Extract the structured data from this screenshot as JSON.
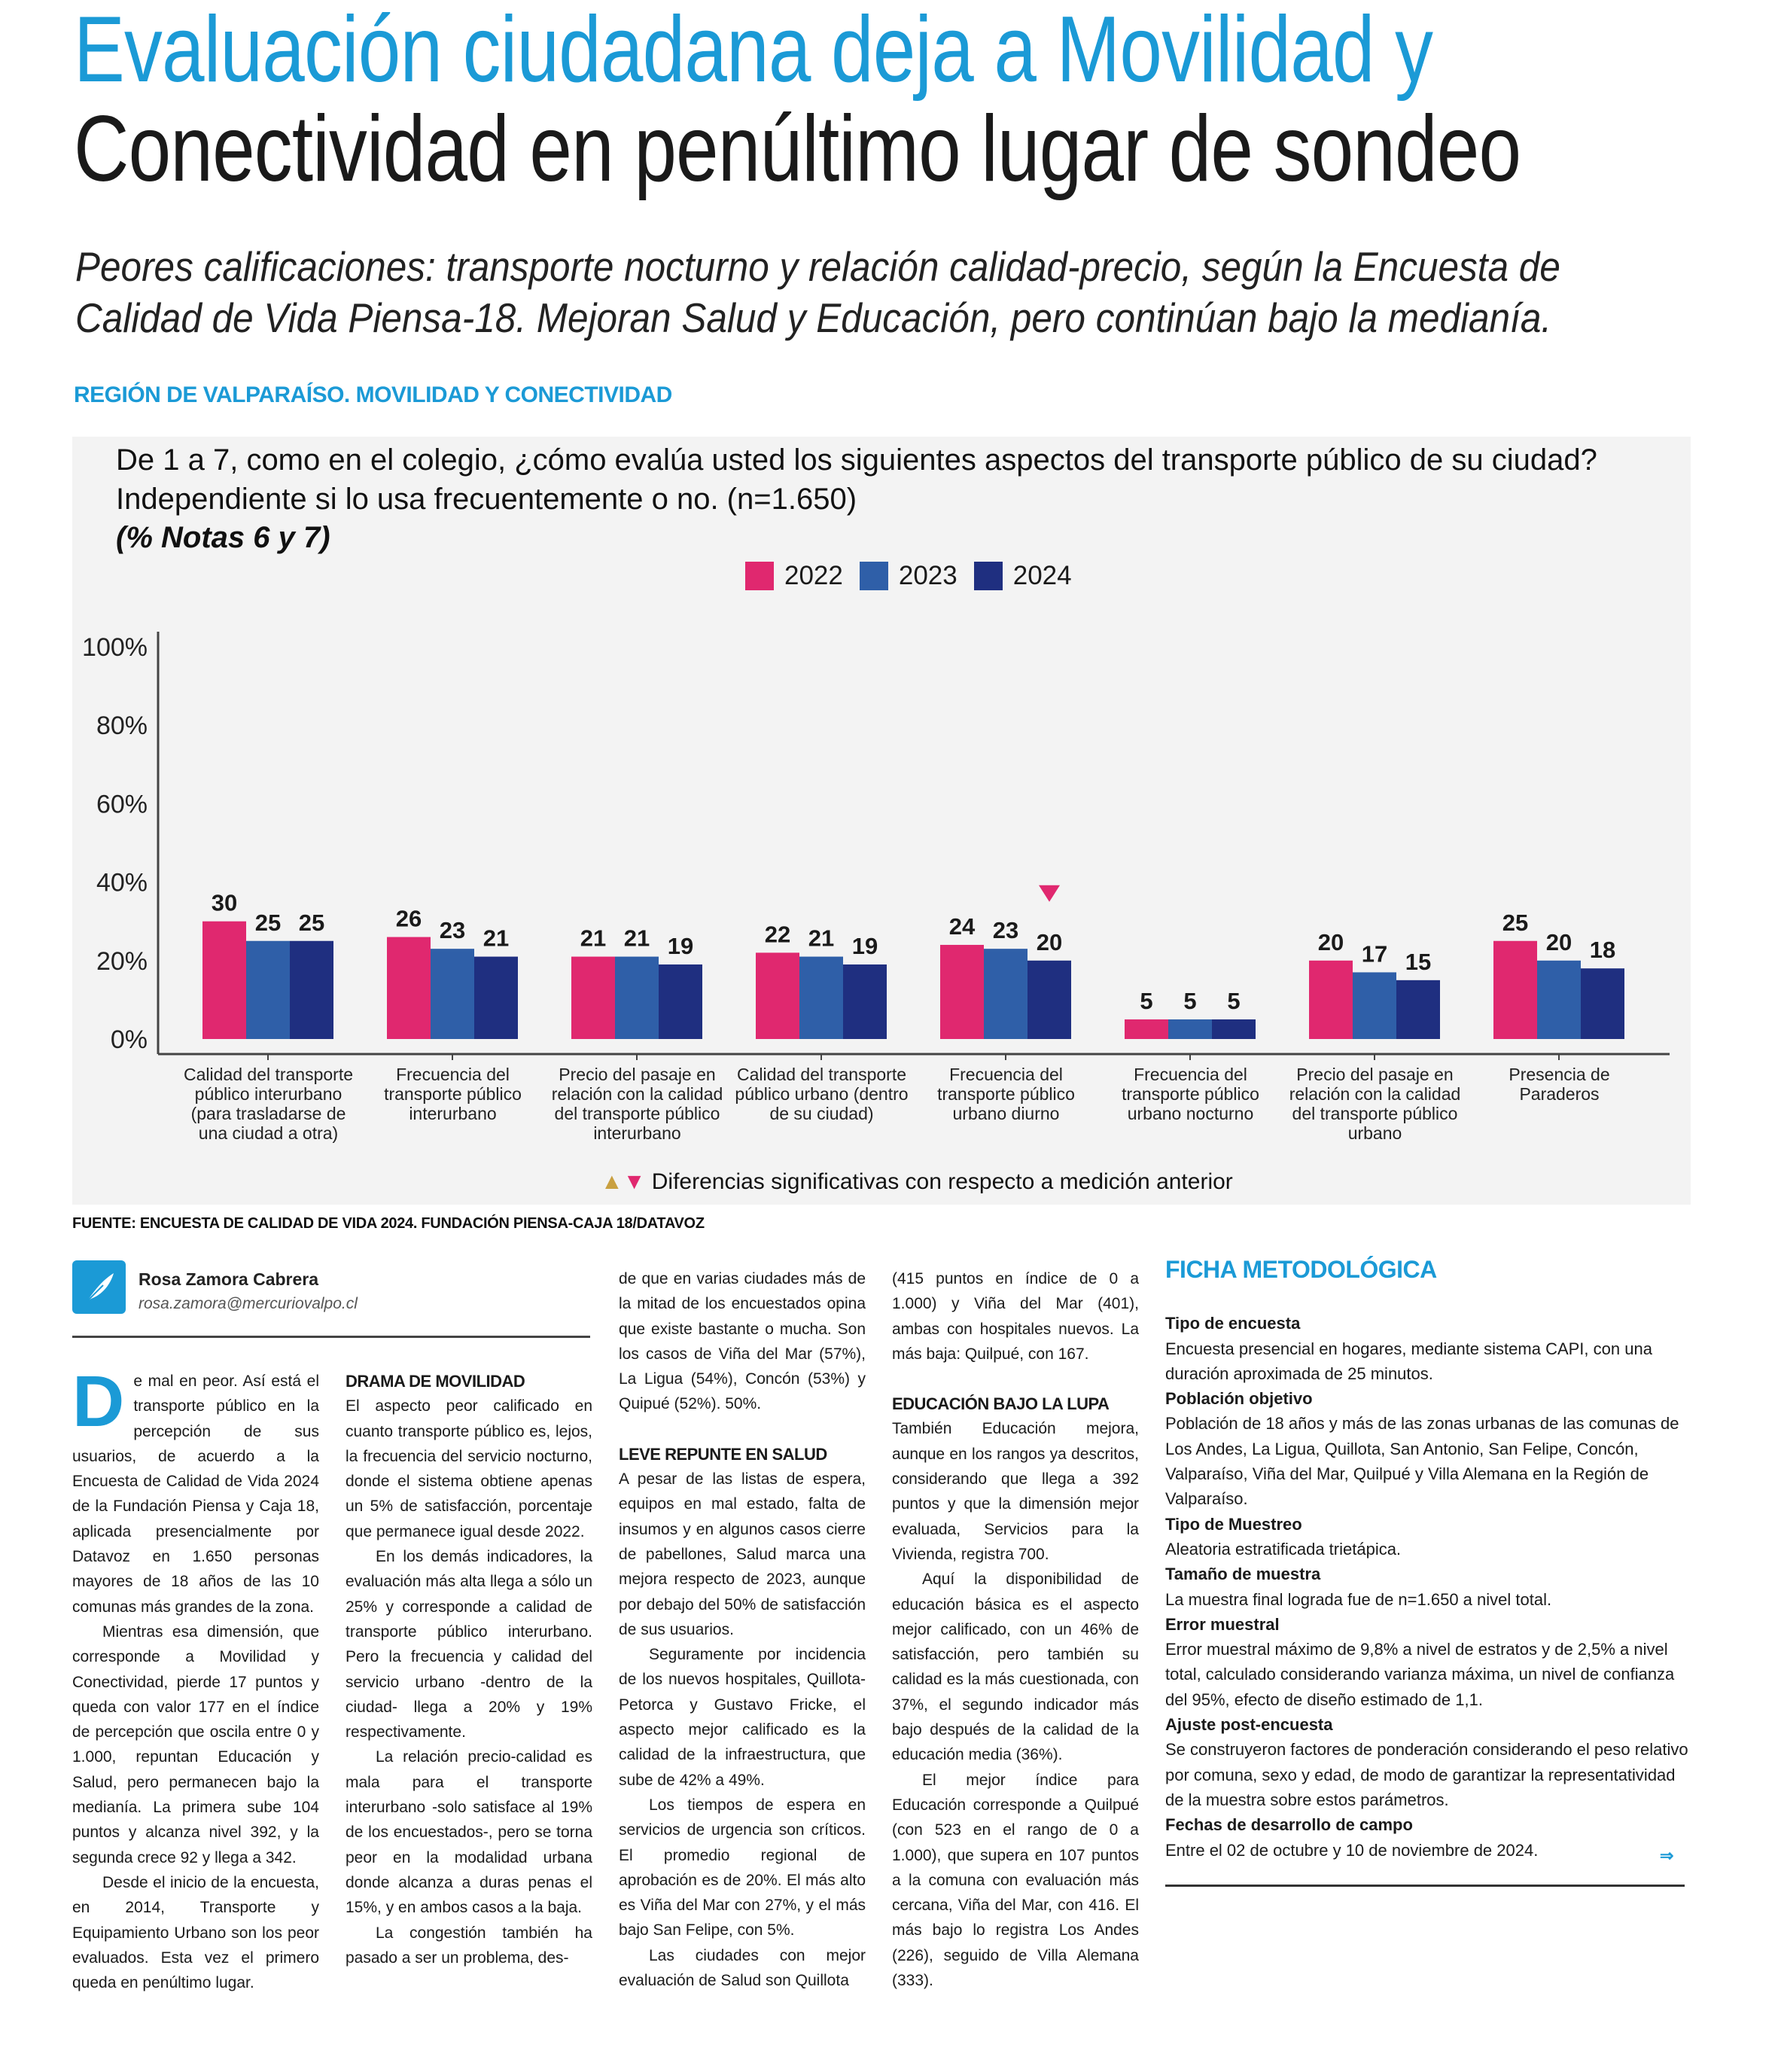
{
  "headline": {
    "line1": "Evaluación ciudadana deja a Movilidad y",
    "line2": "Conectividad en penúltimo lugar de sondeo"
  },
  "subtitle": "Peores calificaciones: transporte nocturno y relación calidad-precio, según la Encuesta de Calidad de Vida Piensa-18. Mejoran Salud y Educación, pero continúan bajo la medianía.",
  "section_label": "REGIÓN DE VALPARAÍSO. MOVILIDAD Y CONECTIVIDAD",
  "colors": {
    "brand": "#1b9ad6",
    "y2022": "#e0286f",
    "y2023": "#2f5fa8",
    "y2024": "#1f2f80",
    "up": "#c9a040",
    "down": "#e0286f"
  },
  "chart_data": {
    "type": "bar",
    "title": "De 1 a 7, como en el colegio, ¿cómo evalúa usted los siguientes aspectos del transporte público de su ciudad? Independiente si lo usa frecuentemente o no. (n=1.650)",
    "subtitle": "(% Notas 6 y 7)",
    "categories": [
      "Calidad del transporte público interurbano (para trasladarse de una ciudad a otra)",
      "Frecuencia del transporte público interurbano",
      "Precio del pasaje en relación con la calidad del transporte público interurbano",
      "Calidad del transporte público urbano (dentro de su ciudad)",
      "Frecuencia del transporte público urbano diurno",
      "Frecuencia del transporte público urbano nocturno",
      "Precio del pasaje en relación con la calidad del transporte público urbano",
      "Presencia de Paraderos"
    ],
    "series": [
      {
        "name": "2022",
        "values": [
          30,
          26,
          21,
          22,
          24,
          5,
          20,
          25
        ]
      },
      {
        "name": "2023",
        "values": [
          25,
          23,
          21,
          21,
          23,
          5,
          17,
          20
        ]
      },
      {
        "name": "2024",
        "values": [
          25,
          21,
          19,
          19,
          20,
          5,
          15,
          18
        ]
      }
    ],
    "yticks": [
      "0%",
      "20%",
      "40%",
      "60%",
      "80%",
      "100%"
    ],
    "ylim": [
      0,
      100
    ],
    "xlabel": "",
    "ylabel": "",
    "legend": "top-center",
    "significance_markers": [
      {
        "category_index": 4,
        "series": "2024",
        "direction": "down"
      }
    ],
    "footnote": "Diferencias significativas con respecto a medición anterior"
  },
  "fuente": "FUENTE: ENCUESTA DE CALIDAD DE VIDA 2024. FUNDACIÓN PIENSA-CAJA 18/DATAVOZ",
  "author": {
    "name": "Rosa Zamora Cabrera",
    "email": "rosa.zamora@mercuriovalpo.cl"
  },
  "article": {
    "dropcap": "D",
    "col1": [
      "e mal en peor. Así está el transporte público en la percepción de sus usuarios, de acuerdo a la Encuesta de Calidad de Vida 2024 de la Fundación Piensa y Caja 18, aplicada presencialmente por Datavoz en 1.650 personas mayores de 18 años de las 10 comunas más grandes de la zona.",
      "Mientras esa dimensión, que corresponde a Movilidad y Conectividad, pierde 17 puntos y queda con valor 177 en el índice de percepción que oscila entre 0 y 1.000, repuntan Educación y Salud, pero permanecen bajo la medianía. La primera sube 104 puntos y alcanza nivel 392, y la segunda crece 92 y llega a 342.",
      "Desde el inicio de la encuesta, en 2014, Transporte y Equipamiento Urbano son los peor evaluados. Esta vez el primero queda en penúltimo lugar."
    ],
    "h_drama": "DRAMA DE MOVILIDAD",
    "col2": [
      "El aspecto peor calificado en cuanto transporte público es, lejos, la frecuencia del servicio nocturno, donde el sistema obtiene apenas un 5% de satisfacción, porcentaje que permanece igual desde 2022.",
      "En los demás indicadores, la evaluación más alta llega a sólo un 25% y corresponde a calidad de transporte público interurbano. Pero la frecuencia y calidad del servicio urbano -dentro de la ciudad- llega a 20% y 19% respectivamente.",
      "La relación precio-calidad es mala para el transporte interurbano -solo satisface al 19% de los encuestados-, pero se torna peor en la modalidad urbana donde alcanza a duras penas el 15%, y en ambos casos a la baja.",
      "La congestión también ha pasado a ser un problema, des-"
    ],
    "col3_lead": "de que en varias ciudades más de la mitad de los encuestados opina que existe bastante o mucha. Son los casos de Viña del Mar (57%), La Ligua (54%), Concón (53%) y Quipué (52%). 50%.",
    "h_salud": "LEVE REPUNTE EN SALUD",
    "col3": [
      "A pesar de las listas de espera, equipos en mal estado, falta de insumos y en algunos casos cierre de pabellones, Salud marca una mejora respecto de 2023, aunque por debajo del 50% de satisfacción de sus usuarios.",
      "Seguramente por incidencia de los nuevos hospitales, Quillota-Petorca y Gustavo Fricke, el aspecto mejor calificado es la calidad de la infraestructura, que sube de 42% a 49%.",
      "Los tiempos de espera en servicios de urgencia son críticos. El promedio regional de aprobación es de 20%. El más alto es Viña del Mar con 27%, y el más bajo San Felipe, con 5%.",
      "Las ciudades con mejor evaluación de Salud son Quillota"
    ],
    "col4_lead": "(415 puntos en índice de 0 a 1.000) y Viña del Mar (401), ambas con hospitales nuevos. La más baja: Quilpué, con 167.",
    "h_educacion": "EDUCACIÓN BAJO LA LUPA",
    "col4": [
      "También Educación mejora, aunque en los rangos ya descritos, considerando que llega a 392 puntos y que la dimensión mejor evaluada, Servicios para la Vivienda, registra 700.",
      "Aquí la disponibilidad de educación básica es el aspecto mejor calificado, con un 46% de satisfacción, pero también su calidad es la más cuestionada, con 37%, el segundo indicador más bajo después de la calidad de la educación media (36%).",
      "El mejor índice para Educación corresponde a Quilpué (con 523 en el rango de 0 a 1.000), que supera en 107 puntos a la comuna con evaluación más cercana, Viña del Mar, con 416. El más bajo lo registra Los Andes (226), seguido de Villa Alemana (333)."
    ]
  },
  "ficha": {
    "title": "FICHA METODOLÓGICA",
    "items": [
      {
        "k": "Tipo de encuesta",
        "v": "Encuesta presencial en hogares, mediante sistema CAPI, con una duración aproximada de 25 minutos."
      },
      {
        "k": "Población objetivo",
        "v": "Población de 18 años y más de las zonas urbanas de las comunas de Los Andes, La Ligua, Quillota, San Antonio, San Felipe, Concón, Valparaíso, Viña del Mar, Quilpué y Villa Alemana en la Región de Valparaíso."
      },
      {
        "k": "Tipo de Muestreo",
        "v": "Aleatoria estratificada trietápica."
      },
      {
        "k": "Tamaño de muestra",
        "v": "La muestra final lograda fue de n=1.650 a nivel total."
      },
      {
        "k": "Error muestral",
        "v": "Error muestral máximo de 9,8% a nivel de estratos y de 2,5% a nivel total, calculado considerando varianza máxima, un nivel de confianza del 95%, efecto de diseño estimado de 1,1."
      },
      {
        "k": "Ajuste post-encuesta",
        "v": "Se construyeron factores de ponderación considerando el peso relativo por comuna, sexo y edad, de modo de garantizar la representatividad de la muestra sobre estos parámetros."
      },
      {
        "k": "Fechas de desarrollo de campo",
        "v": "Entre el 02 de octubre y 10 de noviembre de 2024."
      }
    ]
  }
}
